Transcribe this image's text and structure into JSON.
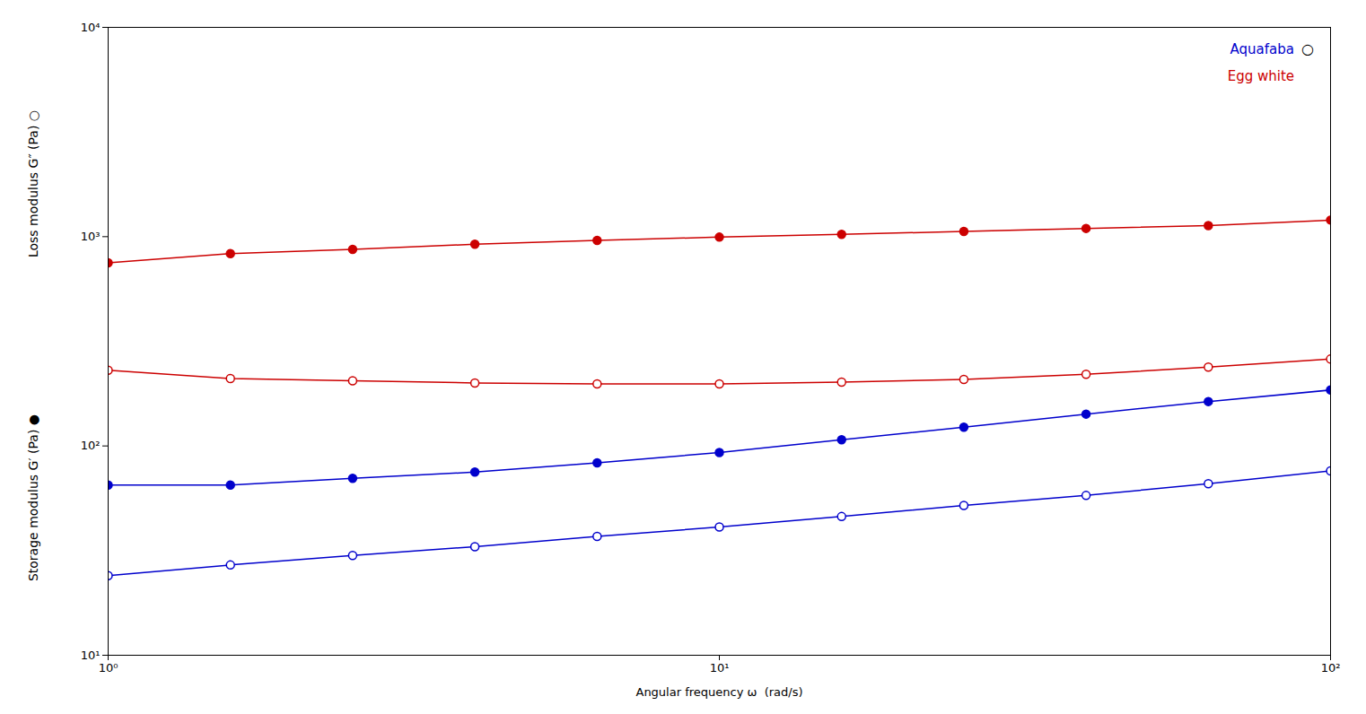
{
  "chart_data": {
    "type": "line",
    "xlabel": "Angular frequency ω  (rad/s)",
    "ylabel": [
      "Loss modulus G″ (Pa) ○",
      "Storage modulus G′ (Pa) ●"
    ],
    "log": true,
    "grid": false,
    "x": [
      1.0,
      1.585,
      2.512,
      3.981,
      6.31,
      10.0,
      15.85,
      25.12,
      39.81,
      63.1,
      100.0
    ],
    "xlim": [
      1,
      100
    ],
    "ylim": [
      10,
      10000
    ],
    "xticks": [
      {
        "value": 1,
        "label": "10⁰"
      },
      {
        "value": 10,
        "label": "10¹"
      },
      {
        "value": 100,
        "label": "10²"
      }
    ],
    "yticks": [
      {
        "value": 10,
        "label": "10¹"
      },
      {
        "value": 100,
        "label": "10²"
      },
      {
        "value": 1000,
        "label": "10³"
      },
      {
        "value": 10000,
        "label": "10⁴"
      }
    ],
    "series": [
      {
        "color": "#cc0000",
        "marker": "filled_circle",
        "values": [
          750,
          830,
          870,
          920,
          960,
          995,
          1025,
          1060,
          1095,
          1130,
          1200
        ]
      },
      {
        "color": "#cc0000",
        "marker": "open_circle",
        "values": [
          230,
          210,
          205,
          200,
          198,
          198,
          202,
          208,
          220,
          238,
          260
        ]
      },
      {
        "color": "#0000cc",
        "marker": "filled_circle",
        "values": [
          65,
          65,
          70,
          75,
          83,
          93,
          107,
          123,
          142,
          163,
          185
        ]
      },
      {
        "color": "#0000cc",
        "marker": "open_circle",
        "values": [
          24,
          27,
          30,
          33,
          37,
          41,
          46,
          52,
          58,
          66,
          76
        ]
      }
    ],
    "annotations": [
      {
        "text": "Aquafaba",
        "color": "#0000cc",
        "symbol": "○"
      },
      {
        "text": "Egg white",
        "color": "#cc0000"
      }
    ]
  }
}
